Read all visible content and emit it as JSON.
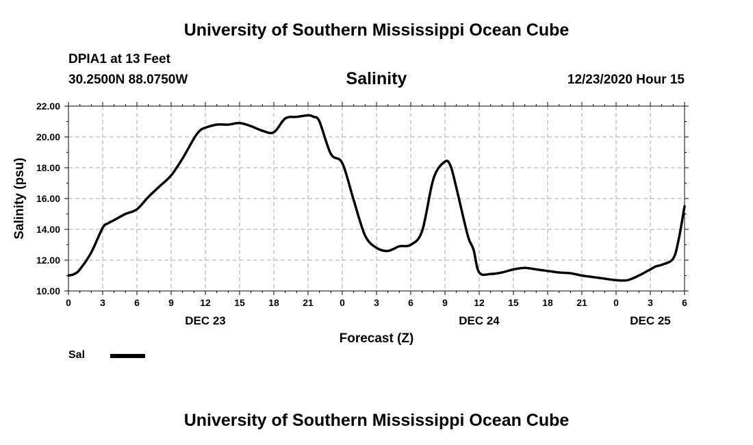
{
  "header": {
    "title": "University of Southern Mississippi Ocean Cube",
    "station": "DPIA1 at 13 Feet",
    "coords": "30.2500N 88.0750W",
    "chart_title": "Salinity",
    "timestamp": "12/23/2020 Hour 15"
  },
  "footer": {
    "title": "University of Southern Mississippi Ocean Cube"
  },
  "legend": {
    "label": "Sal"
  },
  "colors": {
    "line": "#000000",
    "grid": "#aaaaaa",
    "background": "#ffffff"
  },
  "chart_data": {
    "type": "line",
    "title": "Salinity",
    "xlabel": "Forecast (Z)",
    "ylabel": "Salinity (psu)",
    "xlim": [
      0,
      54
    ],
    "ylim": [
      10,
      22
    ],
    "y_ticks": [
      "10.00",
      "12.00",
      "14.00",
      "16.00",
      "18.00",
      "20.00",
      "22.00"
    ],
    "x_ticks": [
      "0",
      "3",
      "6",
      "9",
      "12",
      "15",
      "18",
      "21",
      "0",
      "3",
      "6",
      "9",
      "12",
      "15",
      "18",
      "21",
      "0",
      "3",
      "6"
    ],
    "day_labels": [
      {
        "label": "DEC 23",
        "x": 12
      },
      {
        "label": "DEC 24",
        "x": 36
      },
      {
        "label": "DEC 25",
        "x": 51
      }
    ],
    "grid": true,
    "series": [
      {
        "name": "Sal",
        "x": [
          0,
          0.5,
          1,
          2,
          3,
          3.5,
          4,
          5,
          6,
          7,
          8,
          9,
          10,
          11,
          11.5,
          12,
          13,
          14,
          15,
          16,
          17,
          18,
          19,
          20,
          21,
          21.5,
          22,
          23,
          24,
          25,
          26,
          27,
          28,
          29,
          30,
          31,
          32,
          33,
          33.5,
          34,
          35,
          35.5,
          36,
          37,
          38,
          39,
          40,
          41,
          42,
          43,
          44,
          45,
          46,
          47,
          48,
          49,
          50,
          51,
          51.5,
          52,
          53,
          53.5,
          54
        ],
        "values": [
          11.0,
          11.1,
          11.4,
          12.5,
          14.1,
          14.4,
          14.6,
          15.0,
          15.3,
          16.1,
          16.8,
          17.5,
          18.6,
          19.9,
          20.4,
          20.6,
          20.8,
          20.8,
          20.9,
          20.7,
          20.4,
          20.3,
          21.2,
          21.3,
          21.4,
          21.3,
          21.0,
          18.9,
          18.3,
          15.9,
          13.6,
          12.8,
          12.6,
          12.9,
          13.0,
          13.9,
          17.3,
          18.4,
          18.1,
          16.7,
          13.6,
          12.7,
          11.2,
          11.1,
          11.2,
          11.4,
          11.5,
          11.4,
          11.3,
          11.2,
          11.15,
          11.0,
          10.9,
          10.8,
          10.7,
          10.7,
          11.0,
          11.4,
          11.6,
          11.7,
          12.1,
          13.4,
          15.5
        ]
      }
    ]
  }
}
